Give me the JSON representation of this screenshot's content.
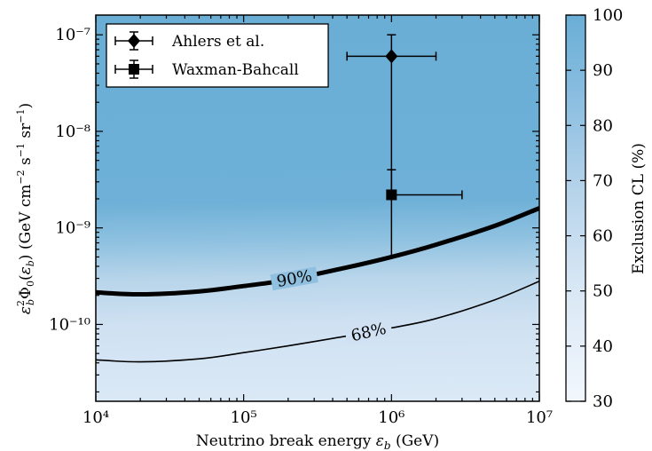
{
  "chart_data": {
    "type": "heatmap",
    "title": "",
    "xlabel": "Neutrino break energy ε_b (GeV)",
    "ylabel": "ε_b²Φ₀(ε_b) (GeV cm⁻² s⁻¹ sr⁻¹)",
    "xscale": "log",
    "yscale": "log",
    "xlim": [
      10000,
      10000000
    ],
    "ylim": [
      1.6e-11,
      1.6e-07
    ],
    "x_tick_labels": [
      "10⁴",
      "10⁵",
      "10⁶",
      "10⁷"
    ],
    "x_tick_values": [
      10000,
      100000,
      1000000,
      10000000
    ],
    "y_tick_labels": [
      "10⁻¹⁰",
      "10⁻⁹",
      "10⁻⁸",
      "10⁻⁷"
    ],
    "y_tick_values": [
      1e-10,
      1e-09,
      1e-08,
      1e-07
    ],
    "colorbar": {
      "label": "Exclusion CL (%)",
      "range": [
        30,
        100
      ],
      "tick_labels": [
        "30",
        "40",
        "50",
        "60",
        "70",
        "80",
        "90",
        "100"
      ],
      "tick_values": [
        30,
        40,
        50,
        60,
        70,
        80,
        90,
        100
      ],
      "color_low": "#f2f7fd",
      "color_high": "#6aaed6"
    },
    "contours": [
      {
        "label": "90%",
        "level": 90,
        "linewidth": "thick",
        "x": [
          10000,
          20000,
          50000,
          100000,
          200000,
          500000,
          1000000,
          2000000,
          5000000,
          10000000
        ],
        "y": [
          2.15e-10,
          2.05e-10,
          2.2e-10,
          2.5e-10,
          2.9e-10,
          3.9e-10,
          5e-10,
          6.7e-10,
          1.05e-09,
          1.6e-09
        ]
      },
      {
        "label": "68%",
        "level": 68,
        "linewidth": "thin",
        "x": [
          10000,
          20000,
          50000,
          100000,
          200000,
          500000,
          1000000,
          2000000,
          5000000,
          10000000
        ],
        "y": [
          4.3e-11,
          4.1e-11,
          4.4e-11,
          5.1e-11,
          6e-11,
          7.6e-11,
          9.2e-11,
          1.15e-10,
          1.8e-10,
          2.8e-10
        ]
      }
    ],
    "series": [
      {
        "name": "Ahlers et al.",
        "marker": "diamond",
        "x": 1000000,
        "y": 6e-08,
        "xerr": [
          500000,
          2000000
        ],
        "yerr": [
          2e-09,
          1e-07
        ]
      },
      {
        "name": "Waxman-Bahcall",
        "marker": "square",
        "x": 1000000,
        "y": 2.2e-09,
        "xerr": [
          1000000,
          3000000
        ],
        "yerr": [
          5e-10,
          4e-09
        ]
      }
    ],
    "legend": {
      "position": "top-left"
    },
    "grid": false
  }
}
